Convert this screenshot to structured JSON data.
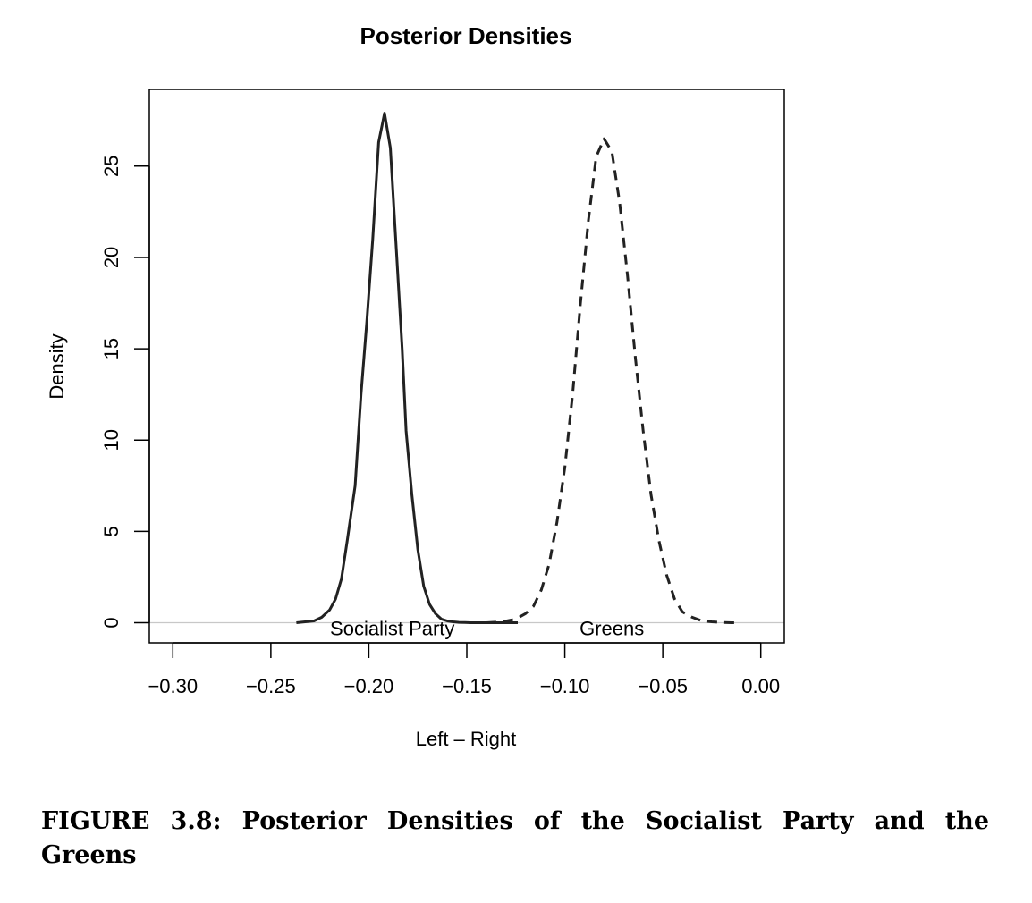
{
  "chart_data": {
    "type": "line",
    "title": "Posterior Densities",
    "xlabel": "Left – Right",
    "ylabel": "Density",
    "xlim": [
      -0.312,
      0.012
    ],
    "ylim": [
      -1.1,
      29.2
    ],
    "x_ticks": [
      -0.3,
      -0.25,
      -0.2,
      -0.15,
      -0.1,
      -0.05,
      0.0
    ],
    "x_tick_labels": [
      "−0.30",
      "−0.25",
      "−0.20",
      "−0.15",
      "−0.10",
      "−0.05",
      "0.00"
    ],
    "y_ticks": [
      0,
      5,
      10,
      15,
      20,
      25
    ],
    "y_tick_labels": [
      "0",
      "5",
      "10",
      "15",
      "20",
      "25"
    ],
    "baseline": 0,
    "grid": false,
    "series": [
      {
        "name": "Socialist Party",
        "line_style": "solid",
        "color": "#222222",
        "label_x": -0.188,
        "label_y": -0.5,
        "x": [
          -0.237,
          -0.228,
          -0.224,
          -0.22,
          -0.217,
          -0.214,
          -0.211,
          -0.207,
          -0.204,
          -0.201,
          -0.198,
          -0.195,
          -0.192,
          -0.189,
          -0.186,
          -0.183,
          -0.181,
          -0.178,
          -0.175,
          -0.172,
          -0.169,
          -0.166,
          -0.163,
          -0.16,
          -0.157,
          -0.154,
          -0.151,
          -0.148,
          -0.145,
          -0.142,
          -0.139,
          -0.136,
          -0.133,
          -0.13,
          -0.127,
          -0.124
        ],
        "y": [
          0.0,
          0.1,
          0.3,
          0.7,
          1.3,
          2.4,
          4.5,
          7.5,
          12.5,
          16.5,
          21.0,
          26.3,
          27.9,
          26.0,
          20.5,
          15.0,
          10.5,
          7.0,
          4.0,
          2.0,
          1.0,
          0.5,
          0.2,
          0.1,
          0.05,
          0.02,
          0.01,
          0.0,
          0.0,
          0.0,
          0.0,
          0.0,
          0.0,
          0.0,
          0.0,
          0.0
        ]
      },
      {
        "name": "Greens",
        "line_style": "dashed",
        "color": "#222222",
        "label_x": -0.076,
        "label_y": -0.5,
        "x": [
          -0.14,
          -0.132,
          -0.125,
          -0.12,
          -0.116,
          -0.112,
          -0.108,
          -0.104,
          -0.1,
          -0.096,
          -0.092,
          -0.088,
          -0.084,
          -0.08,
          -0.076,
          -0.072,
          -0.068,
          -0.064,
          -0.06,
          -0.056,
          -0.052,
          -0.048,
          -0.044,
          -0.04,
          -0.035,
          -0.03,
          -0.025,
          -0.02,
          -0.015,
          -0.01
        ],
        "y": [
          0.0,
          0.05,
          0.2,
          0.5,
          0.9,
          1.8,
          3.2,
          5.5,
          8.5,
          12.5,
          17.5,
          22.0,
          25.5,
          26.5,
          25.8,
          23.0,
          19.0,
          14.5,
          10.5,
          7.0,
          4.5,
          2.6,
          1.3,
          0.6,
          0.3,
          0.1,
          0.05,
          0.02,
          0.0,
          0.0
        ]
      }
    ]
  },
  "caption": {
    "text": "FIGURE 3.8: Posterior Densities of the Socialist Party and the Greens"
  }
}
